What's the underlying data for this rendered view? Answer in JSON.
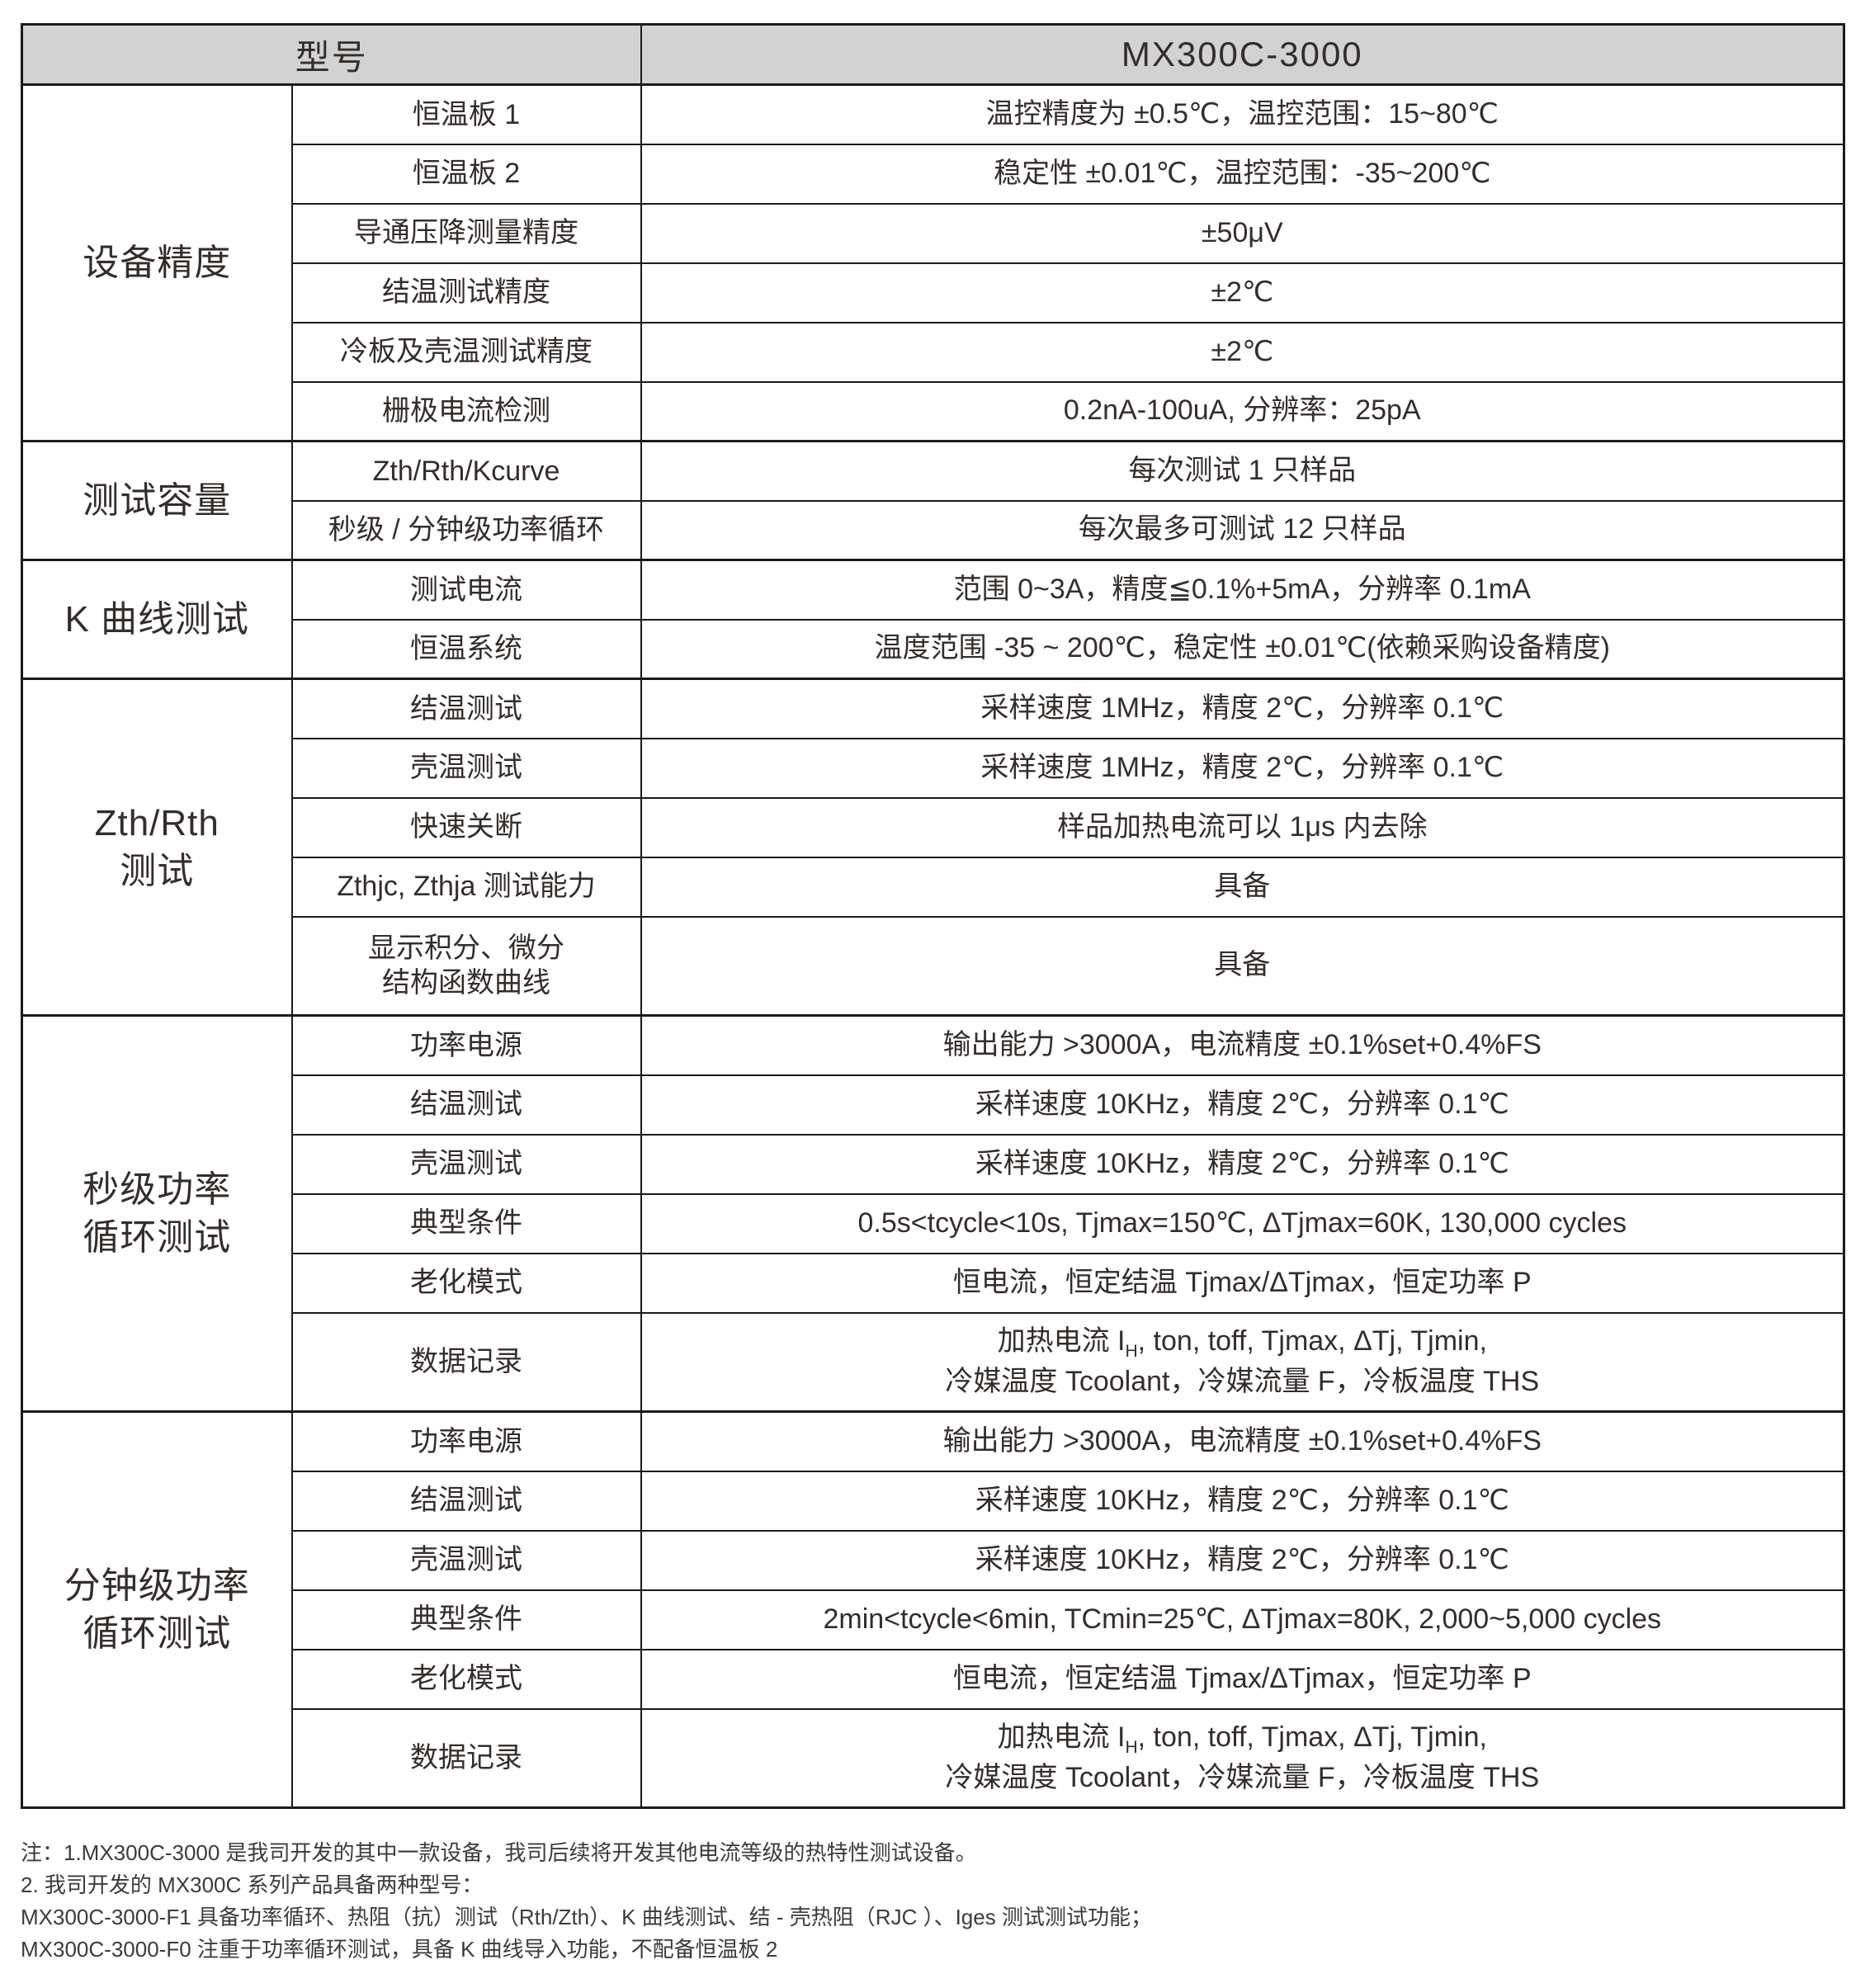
{
  "header": {
    "model_label": "型号",
    "model_value": "MX300C-3000"
  },
  "colors": {
    "header_bg": "#d2d2d2",
    "border": "#1c1a19",
    "text": "#332d2b"
  },
  "table": {
    "sections": [
      {
        "group": "设备精度",
        "rows": [
          {
            "label": "恒温板 1",
            "value": "温控精度为 ±0.5℃，温控范围：15~80℃"
          },
          {
            "label": "恒温板 2",
            "value": "稳定性 ±0.01℃，温控范围：-35~200℃"
          },
          {
            "label": "导通压降测量精度",
            "value": "±50μV"
          },
          {
            "label": "结温测试精度",
            "value": "±2℃"
          },
          {
            "label": "冷板及壳温测试精度",
            "value": "±2℃"
          },
          {
            "label": "栅极电流检测",
            "value": "0.2nA-100uA, 分辨率：25pA"
          }
        ]
      },
      {
        "group": "测试容量",
        "rows": [
          {
            "label": "Zth/Rth/Kcurve",
            "value": "每次测试 1 只样品"
          },
          {
            "label": "秒级 / 分钟级功率循环",
            "value": "每次最多可测试 12 只样品"
          }
        ]
      },
      {
        "group": "K 曲线测试",
        "rows": [
          {
            "label": "测试电流",
            "value": "范围 0~3A，精度≦0.1%+5mA，分辨率 0.1mA"
          },
          {
            "label": "恒温系统",
            "value": "温度范围 -35 ~ 200℃，稳定性 ±0.01℃(依赖采购设备精度)"
          }
        ]
      },
      {
        "group": "Zth/Rth\n测试",
        "rows": [
          {
            "label": "结温测试",
            "value": "采样速度 1MHz，精度 2℃，分辨率 0.1℃"
          },
          {
            "label": "壳温测试",
            "value": "采样速度 1MHz，精度 2℃，分辨率 0.1℃"
          },
          {
            "label": "快速关断",
            "value": "样品加热电流可以 1μs 内去除"
          },
          {
            "label": "Zthjc, Zthja 测试能力",
            "value": "具备"
          },
          {
            "label": "显示积分、微分\n结构函数曲线",
            "value": "具备",
            "tall": true
          }
        ]
      },
      {
        "group": "秒级功率\n循环测试",
        "rows": [
          {
            "label": "功率电源",
            "value": "输出能力 >3000A，电流精度 ±0.1%set+0.4%FS"
          },
          {
            "label": "结温测试",
            "value": "采样速度 10KHz，精度 2℃，分辨率 0.1℃"
          },
          {
            "label": "壳温测试",
            "value": "采样速度 10KHz，精度 2℃，分辨率 0.1℃"
          },
          {
            "label": "典型条件",
            "value": "0.5s<tcycle<10s, Tjmax=150℃, ΔTjmax=60K, 130,000 cycles"
          },
          {
            "label": "老化模式",
            "value": "恒电流，恒定结温 Tjmax/ΔTjmax，恒定功率 P"
          },
          {
            "label": "数据记录",
            "value": "加热电流 I_{H}, ton, toff, Tjmax, ΔTj, Tjmin,\n冷媒温度 Tcoolant，冷媒流量 F，冷板温度 THS",
            "tall": true
          }
        ]
      },
      {
        "group": "分钟级功率\n循环测试",
        "rows": [
          {
            "label": "功率电源",
            "value": "输出能力 >3000A，电流精度 ±0.1%set+0.4%FS"
          },
          {
            "label": "结温测试",
            "value": "采样速度 10KHz，精度 2℃，分辨率 0.1℃"
          },
          {
            "label": "壳温测试",
            "value": "采样速度 10KHz，精度 2℃，分辨率 0.1℃"
          },
          {
            "label": "典型条件",
            "value": "2min<tcycle<6min, TCmin=25℃, ΔTjmax=80K, 2,000~5,000 cycles"
          },
          {
            "label": "老化模式",
            "value": "恒电流，恒定结温 Tjmax/ΔTjmax，恒定功率 P"
          },
          {
            "label": "数据记录",
            "value": "加热电流 I_{H}, ton, toff, Tjmax, ΔTj, Tjmin,\n冷媒温度 Tcoolant，冷媒流量 F，冷板温度 THS",
            "tall": true
          }
        ]
      }
    ]
  },
  "notes": [
    "注：1.MX300C-3000 是我司开发的其中一款设备，我司后续将开发其他电流等级的热特性测试设备。",
    "2. 我司开发的 MX300C 系列产品具备两种型号：",
    "MX300C-3000-F1 具备功率循环、热阻（抗）测试（Rth/Zth）、K 曲线测试、结 - 壳热阻（RJC ）、Iges 测试测试功能；",
    "MX300C-3000-F0 注重于功率循环测试，具备 K 曲线导入功能，不配备恒温板 2"
  ]
}
